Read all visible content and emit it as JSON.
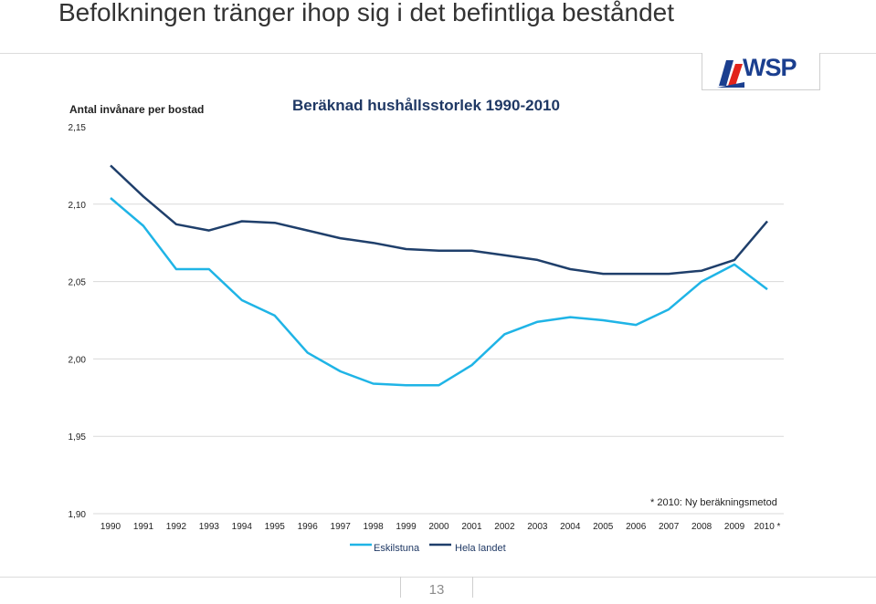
{
  "slide": {
    "title": "Befolkningen tränger ihop sig i det befintliga beståndet",
    "page_number": "13",
    "logo": "WSP"
  },
  "colors": {
    "eskilstuna": "#1fb4e6",
    "hela_landet": "#1f3f6b",
    "gridline": "#d9d9d9",
    "logo_blue": "#1b3f8f",
    "logo_red": "#e2231a"
  },
  "chart_data": {
    "type": "line",
    "title": "Beräknad hushållsstorlek 1990-2010",
    "ylabel": "Antal invånare per bostad",
    "xlabel": "",
    "categories": [
      "1990",
      "1991",
      "1992",
      "1993",
      "1994",
      "1995",
      "1996",
      "1997",
      "1998",
      "1999",
      "2000",
      "2001",
      "2002",
      "2003",
      "2004",
      "2005",
      "2006",
      "2007",
      "2008",
      "2009",
      "2010 *"
    ],
    "y_ticks": [
      "2,15",
      "2,10",
      "2,05",
      "2,00",
      "1,95",
      "1,90"
    ],
    "ylim": [
      1.9,
      2.15
    ],
    "grid": true,
    "legend_position": "bottom",
    "note": "* 2010: Ny beräkningsmetod",
    "series": [
      {
        "name": "Eskilstuna",
        "values": [
          2.104,
          2.086,
          2.058,
          2.058,
          2.038,
          2.028,
          2.004,
          1.992,
          1.984,
          1.983,
          1.983,
          1.996,
          2.016,
          2.024,
          2.027,
          2.025,
          2.022,
          2.032,
          2.05,
          2.061,
          2.045
        ]
      },
      {
        "name": "Hela landet",
        "values": [
          2.125,
          2.105,
          2.087,
          2.083,
          2.089,
          2.088,
          2.083,
          2.078,
          2.075,
          2.071,
          2.07,
          2.07,
          2.067,
          2.064,
          2.058,
          2.055,
          2.055,
          2.055,
          2.057,
          2.064,
          2.089
        ]
      }
    ]
  }
}
